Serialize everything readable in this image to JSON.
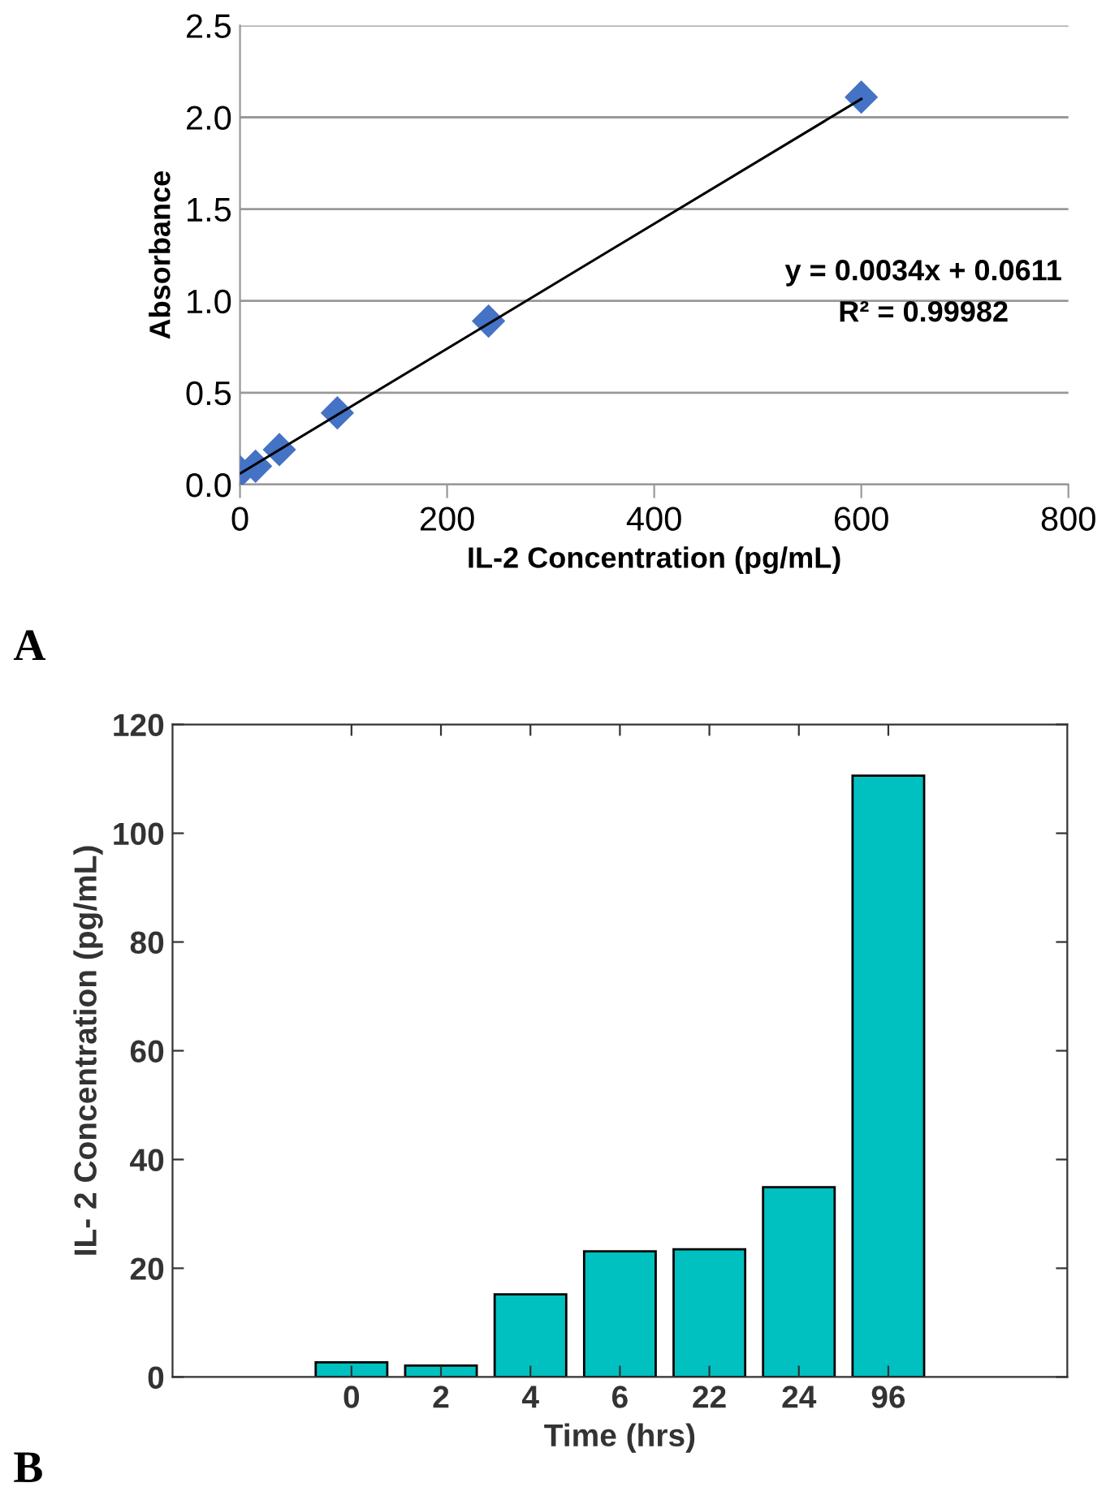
{
  "chart_data": [
    {
      "type": "scatter",
      "xlabel": "IL-2 Concentration (pg/mL)",
      "ylabel": "Absorbance",
      "xlim": [
        0,
        800
      ],
      "xticks": [
        0,
        200,
        400,
        600,
        800
      ],
      "ylim": [
        0,
        2.5
      ],
      "yticks": [
        {
          "value": 0,
          "label": "0.0"
        },
        {
          "value": 0.5,
          "label": "0.5"
        },
        {
          "value": 1,
          "label": "1.0"
        },
        {
          "value": 1.5,
          "label": "1.5"
        },
        {
          "value": 2,
          "label": "2.0"
        },
        {
          "value": 2.5,
          "label": "2.5"
        }
      ],
      "grid": "y",
      "legend": false,
      "series": [
        {
          "type": "scatter",
          "marker": "diamond",
          "color": "#4472c4",
          "x": [
            0,
            15,
            38,
            94,
            240,
            600
          ],
          "values": [
            0.07,
            0.1,
            0.19,
            0.39,
            0.89,
            2.11
          ]
        },
        {
          "type": "line",
          "marker": "none",
          "line_style": "solid",
          "color": "#000000",
          "x": [
            0,
            600
          ],
          "values": [
            0.06,
            2.1
          ]
        }
      ],
      "annotations": [
        "y = 0.0034x + 0.0611",
        "R² = 0.99982",
        "A"
      ]
    },
    {
      "type": "bar",
      "xlabel": "Time (hrs)",
      "ylabel": "IL- 2 Concentration (pg/mL)",
      "categories": [
        "0",
        "2",
        "4",
        "6",
        "22",
        "24",
        "96"
      ],
      "values": [
        2.7,
        2.1,
        15.2,
        23.1,
        23.5,
        34.9,
        110.6
      ],
      "color": "#00c0c0",
      "ylim": [
        0,
        120
      ],
      "yticks": [
        0,
        20,
        40,
        60,
        80,
        100,
        120
      ],
      "grid": false,
      "legend": false,
      "annotations": [
        "B"
      ]
    }
  ]
}
